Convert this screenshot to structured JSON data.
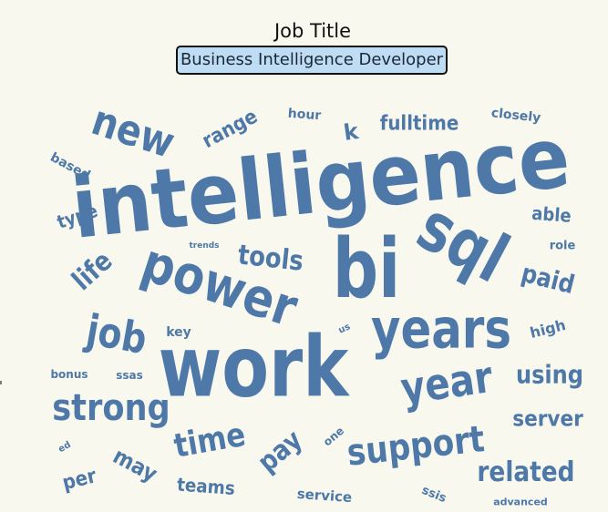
{
  "header": {
    "title": "Job Title",
    "selected": "Business Intelligence Developer"
  },
  "colors": {
    "background": "#f8f8ee",
    "word": "#4d78a8",
    "selector": "#bfdcf5"
  },
  "cloud": {
    "words": [
      "intelligence",
      "work",
      "bi",
      "sql",
      "power",
      "years",
      "new",
      "year",
      "job",
      "strong",
      "support",
      "time",
      "related",
      "pay",
      "using",
      "server",
      "tools",
      "life",
      "paid",
      "may",
      "teams",
      "range",
      "fulltime",
      "per",
      "able",
      "type",
      "k",
      "high",
      "service",
      "closely",
      "hour",
      "key",
      "ssis",
      "based",
      "role",
      "one",
      "bonus",
      "ssas",
      "trends",
      "us",
      "advanced",
      "ed"
    ]
  }
}
